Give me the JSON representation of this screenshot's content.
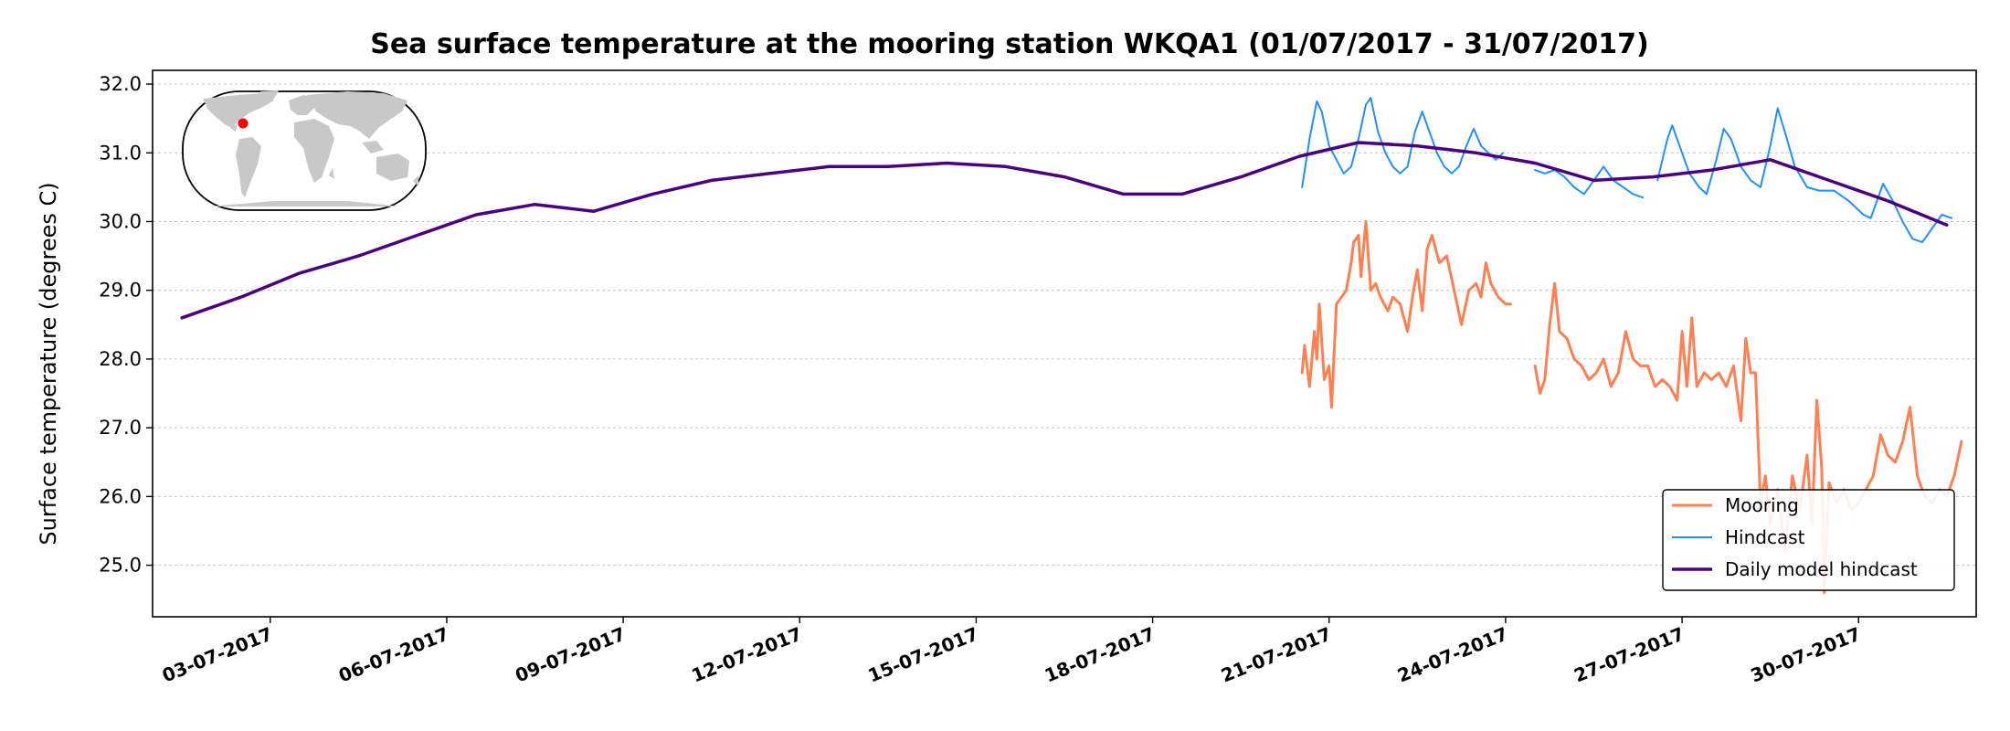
{
  "chart_data": {
    "type": "line",
    "title": "Sea surface temperature at the mooring station WKQA1 (01/07/2017 - 31/07/2017)",
    "xlabel": "",
    "ylabel": "Surface temperature (degrees C)",
    "xlim": [
      "2017-07-01T00:00",
      "2017-08-01T00:00"
    ],
    "ylim": [
      24.25,
      32.2
    ],
    "yticks": [
      "25.0",
      "26.0",
      "27.0",
      "28.0",
      "29.0",
      "30.0",
      "31.0",
      "32.0"
    ],
    "xticks": [
      "03-07-2017",
      "06-07-2017",
      "09-07-2017",
      "12-07-2017",
      "15-07-2017",
      "18-07-2017",
      "21-07-2017",
      "24-07-2017",
      "27-07-2017",
      "30-07-2017"
    ],
    "xtick_dates": [
      "2017-07-03",
      "2017-07-06",
      "2017-07-09",
      "2017-07-12",
      "2017-07-15",
      "2017-07-18",
      "2017-07-21",
      "2017-07-24",
      "2017-07-27",
      "2017-07-30"
    ],
    "grid": "horizontal dotted",
    "legend_position": "lower right",
    "inset": "world map with station location marker",
    "series": [
      {
        "name": "Mooring",
        "color": "#ff7f50",
        "points": [
          [
            "2017-07-20T13:00",
            27.8
          ],
          [
            "2017-07-20T14:00",
            28.2
          ],
          [
            "2017-07-20T16:00",
            27.6
          ],
          [
            "2017-07-20T18:00",
            28.4
          ],
          [
            "2017-07-20T19:00",
            28.0
          ],
          [
            "2017-07-20T20:00",
            28.8
          ],
          [
            "2017-07-20T22:00",
            27.7
          ],
          [
            "2017-07-21T00:00",
            27.9
          ],
          [
            "2017-07-21T01:00",
            27.3
          ],
          [
            "2017-07-21T03:00",
            28.8
          ],
          [
            "2017-07-21T05:00",
            28.9
          ],
          [
            "2017-07-21T07:00",
            29.0
          ],
          [
            "2017-07-21T09:00",
            29.4
          ],
          [
            "2017-07-21T10:00",
            29.7
          ],
          [
            "2017-07-21T12:00",
            29.8
          ],
          [
            "2017-07-21T13:00",
            29.2
          ],
          [
            "2017-07-21T15:00",
            30.0
          ],
          [
            "2017-07-21T17:00",
            29.0
          ],
          [
            "2017-07-21T19:00",
            29.1
          ],
          [
            "2017-07-21T21:00",
            28.9
          ],
          [
            "2017-07-22T00:00",
            28.7
          ],
          [
            "2017-07-22T02:00",
            28.9
          ],
          [
            "2017-07-22T05:00",
            28.8
          ],
          [
            "2017-07-22T08:00",
            28.4
          ],
          [
            "2017-07-22T10:00",
            28.9
          ],
          [
            "2017-07-22T12:00",
            29.3
          ],
          [
            "2017-07-22T14:00",
            28.7
          ],
          [
            "2017-07-22T16:00",
            29.6
          ],
          [
            "2017-07-22T18:00",
            29.8
          ],
          [
            "2017-07-22T21:00",
            29.4
          ],
          [
            "2017-07-23T00:00",
            29.5
          ],
          [
            "2017-07-23T03:00",
            29.0
          ],
          [
            "2017-07-23T06:00",
            28.5
          ],
          [
            "2017-07-23T09:00",
            29.0
          ],
          [
            "2017-07-23T12:00",
            29.1
          ],
          [
            "2017-07-23T14:00",
            28.9
          ],
          [
            "2017-07-23T16:00",
            29.4
          ],
          [
            "2017-07-23T18:00",
            29.1
          ],
          [
            "2017-07-23T21:00",
            28.9
          ],
          [
            "2017-07-24T00:00",
            28.8
          ],
          [
            "2017-07-24T02:00",
            28.8
          ],
          null,
          [
            "2017-07-24T12:00",
            27.9
          ],
          [
            "2017-07-24T14:00",
            27.5
          ],
          [
            "2017-07-24T16:00",
            27.7
          ],
          [
            "2017-07-24T18:00",
            28.5
          ],
          [
            "2017-07-24T20:00",
            29.1
          ],
          [
            "2017-07-24T22:00",
            28.4
          ],
          [
            "2017-07-25T01:00",
            28.3
          ],
          [
            "2017-07-25T04:00",
            28.0
          ],
          [
            "2017-07-25T07:00",
            27.9
          ],
          [
            "2017-07-25T10:00",
            27.7
          ],
          [
            "2017-07-25T13:00",
            27.8
          ],
          [
            "2017-07-25T16:00",
            28.0
          ],
          [
            "2017-07-25T19:00",
            27.6
          ],
          [
            "2017-07-25T22:00",
            27.8
          ],
          [
            "2017-07-26T01:00",
            28.4
          ],
          [
            "2017-07-26T04:00",
            28.0
          ],
          [
            "2017-07-26T07:00",
            27.9
          ],
          [
            "2017-07-26T10:00",
            27.9
          ],
          [
            "2017-07-26T13:00",
            27.6
          ],
          [
            "2017-07-26T16:00",
            27.7
          ],
          [
            "2017-07-26T19:00",
            27.6
          ],
          [
            "2017-07-26T22:00",
            27.4
          ],
          [
            "2017-07-27T00:00",
            28.4
          ],
          [
            "2017-07-27T02:00",
            27.6
          ],
          [
            "2017-07-27T04:00",
            28.6
          ],
          [
            "2017-07-27T06:00",
            27.6
          ],
          [
            "2017-07-27T09:00",
            27.8
          ],
          [
            "2017-07-27T12:00",
            27.7
          ],
          [
            "2017-07-27T15:00",
            27.8
          ],
          [
            "2017-07-27T18:00",
            27.6
          ],
          [
            "2017-07-27T21:00",
            27.9
          ],
          [
            "2017-07-28T00:00",
            27.1
          ],
          [
            "2017-07-28T02:00",
            28.3
          ],
          [
            "2017-07-28T04:00",
            27.8
          ],
          [
            "2017-07-28T06:00",
            27.8
          ],
          [
            "2017-07-28T08:00",
            25.9
          ],
          [
            "2017-07-28T10:00",
            26.3
          ],
          [
            "2017-07-28T12:00",
            25.6
          ],
          [
            "2017-07-28T15:00",
            26.1
          ],
          [
            "2017-07-28T18:00",
            25.2
          ],
          [
            "2017-07-28T21:00",
            26.3
          ],
          [
            "2017-07-29T00:00",
            25.8
          ],
          [
            "2017-07-29T03:00",
            26.6
          ],
          [
            "2017-07-29T05:00",
            25.6
          ],
          [
            "2017-07-29T07:00",
            27.4
          ],
          [
            "2017-07-29T09:00",
            26.4
          ],
          [
            "2017-07-29T10:00",
            24.6
          ],
          [
            "2017-07-29T12:00",
            26.2
          ],
          [
            "2017-07-29T15:00",
            25.9
          ],
          [
            "2017-07-29T18:00",
            26.1
          ],
          [
            "2017-07-29T21:00",
            25.8
          ],
          [
            "2017-07-30T00:00",
            25.9
          ],
          [
            "2017-07-30T03:00",
            26.1
          ],
          [
            "2017-07-30T06:00",
            26.3
          ],
          [
            "2017-07-30T09:00",
            26.9
          ],
          [
            "2017-07-30T12:00",
            26.6
          ],
          [
            "2017-07-30T15:00",
            26.5
          ],
          [
            "2017-07-30T18:00",
            26.8
          ],
          [
            "2017-07-30T21:00",
            27.3
          ],
          [
            "2017-07-31T00:00",
            26.3
          ],
          [
            "2017-07-31T03:00",
            26.0
          ],
          [
            "2017-07-31T06:00",
            25.9
          ],
          [
            "2017-07-31T09:00",
            26.1
          ],
          [
            "2017-07-31T12:00",
            26.0
          ],
          [
            "2017-07-31T15:00",
            26.3
          ],
          [
            "2017-07-31T18:00",
            26.8
          ]
        ]
      },
      {
        "name": "Hindcast",
        "color": "#1e90ff",
        "points": [
          [
            "2017-07-20T13:00",
            30.5
          ],
          [
            "2017-07-20T16:00",
            31.2
          ],
          [
            "2017-07-20T19:00",
            31.75
          ],
          [
            "2017-07-20T21:00",
            31.6
          ],
          [
            "2017-07-21T00:00",
            31.1
          ],
          [
            "2017-07-21T03:00",
            30.9
          ],
          [
            "2017-07-21T06:00",
            30.7
          ],
          [
            "2017-07-21T09:00",
            30.8
          ],
          [
            "2017-07-21T12:00",
            31.2
          ],
          [
            "2017-07-21T15:00",
            31.7
          ],
          [
            "2017-07-21T17:00",
            31.8
          ],
          [
            "2017-07-21T20:00",
            31.3
          ],
          [
            "2017-07-21T23:00",
            31.0
          ],
          [
            "2017-07-22T02:00",
            30.8
          ],
          [
            "2017-07-22T05:00",
            30.7
          ],
          [
            "2017-07-22T08:00",
            30.8
          ],
          [
            "2017-07-22T11:00",
            31.3
          ],
          [
            "2017-07-22T14:00",
            31.6
          ],
          [
            "2017-07-22T17:00",
            31.3
          ],
          [
            "2017-07-22T20:00",
            31.0
          ],
          [
            "2017-07-22T23:00",
            30.8
          ],
          [
            "2017-07-23T02:00",
            30.7
          ],
          [
            "2017-07-23T05:00",
            30.8
          ],
          [
            "2017-07-23T08:00",
            31.1
          ],
          [
            "2017-07-23T11:00",
            31.35
          ],
          [
            "2017-07-23T14:00",
            31.1
          ],
          [
            "2017-07-23T17:00",
            31.0
          ],
          [
            "2017-07-23T20:00",
            30.9
          ],
          [
            "2017-07-23T23:00",
            31.0
          ],
          null,
          [
            "2017-07-24T12:00",
            30.75
          ],
          [
            "2017-07-24T16:00",
            30.7
          ],
          [
            "2017-07-24T20:00",
            30.75
          ],
          [
            "2017-07-25T00:00",
            30.65
          ],
          [
            "2017-07-25T04:00",
            30.5
          ],
          [
            "2017-07-25T08:00",
            30.4
          ],
          [
            "2017-07-25T12:00",
            30.6
          ],
          [
            "2017-07-25T16:00",
            30.8
          ],
          [
            "2017-07-25T20:00",
            30.6
          ],
          [
            "2017-07-26T00:00",
            30.5
          ],
          [
            "2017-07-26T04:00",
            30.4
          ],
          [
            "2017-07-26T08:00",
            30.35
          ],
          null,
          [
            "2017-07-26T14:00",
            30.6
          ],
          [
            "2017-07-26T18:00",
            31.2
          ],
          [
            "2017-07-26T20:00",
            31.4
          ],
          [
            "2017-07-26T23:00",
            31.1
          ],
          [
            "2017-07-27T03:00",
            30.7
          ],
          [
            "2017-07-27T07:00",
            30.5
          ],
          [
            "2017-07-27T10:00",
            30.4
          ],
          [
            "2017-07-27T14:00",
            30.9
          ],
          [
            "2017-07-27T17:00",
            31.35
          ],
          [
            "2017-07-27T20:00",
            31.2
          ],
          [
            "2017-07-28T00:00",
            30.8
          ],
          [
            "2017-07-28T04:00",
            30.6
          ],
          [
            "2017-07-28T08:00",
            30.5
          ],
          [
            "2017-07-28T12:00",
            31.1
          ],
          [
            "2017-07-28T15:00",
            31.65
          ],
          [
            "2017-07-28T18:00",
            31.3
          ],
          [
            "2017-07-28T22:00",
            30.8
          ],
          [
            "2017-07-29T03:00",
            30.5
          ],
          [
            "2017-07-29T08:00",
            30.45
          ],
          [
            "2017-07-29T14:00",
            30.45
          ],
          [
            "2017-07-29T20:00",
            30.3
          ],
          [
            "2017-07-30T02:00",
            30.1
          ],
          [
            "2017-07-30T05:00",
            30.05
          ],
          [
            "2017-07-30T10:00",
            30.55
          ],
          [
            "2017-07-30T14:00",
            30.3
          ],
          [
            "2017-07-30T18:00",
            30.0
          ],
          [
            "2017-07-30T22:00",
            29.75
          ],
          [
            "2017-07-31T02:00",
            29.7
          ],
          [
            "2017-07-31T06:00",
            29.9
          ],
          [
            "2017-07-31T10:00",
            30.1
          ],
          [
            "2017-07-31T14:00",
            30.05
          ]
        ]
      },
      {
        "name": "Daily model hindcast",
        "color": "#4b0082",
        "points": [
          [
            "2017-07-01T12:00",
            28.6
          ],
          [
            "2017-07-02T12:00",
            28.9
          ],
          [
            "2017-07-03T12:00",
            29.25
          ],
          [
            "2017-07-04T12:00",
            29.5
          ],
          [
            "2017-07-05T12:00",
            29.8
          ],
          [
            "2017-07-06T12:00",
            30.1
          ],
          [
            "2017-07-07T12:00",
            30.25
          ],
          [
            "2017-07-08T12:00",
            30.15
          ],
          [
            "2017-07-09T12:00",
            30.4
          ],
          [
            "2017-07-10T12:00",
            30.6
          ],
          [
            "2017-07-11T12:00",
            30.7
          ],
          [
            "2017-07-12T12:00",
            30.8
          ],
          [
            "2017-07-13T12:00",
            30.8
          ],
          [
            "2017-07-14T12:00",
            30.85
          ],
          [
            "2017-07-15T12:00",
            30.8
          ],
          [
            "2017-07-16T12:00",
            30.65
          ],
          [
            "2017-07-17T12:00",
            30.4
          ],
          [
            "2017-07-18T12:00",
            30.4
          ],
          [
            "2017-07-19T12:00",
            30.65
          ],
          [
            "2017-07-20T12:00",
            30.95
          ],
          [
            "2017-07-21T12:00",
            31.15
          ],
          [
            "2017-07-22T12:00",
            31.1
          ],
          [
            "2017-07-23T12:00",
            31.0
          ],
          [
            "2017-07-24T12:00",
            30.85
          ],
          [
            "2017-07-25T12:00",
            30.6
          ],
          [
            "2017-07-26T12:00",
            30.65
          ],
          [
            "2017-07-27T12:00",
            30.75
          ],
          [
            "2017-07-28T12:00",
            30.9
          ],
          [
            "2017-07-29T12:00",
            30.6
          ],
          [
            "2017-07-30T12:00",
            30.3
          ],
          [
            "2017-07-31T12:00",
            29.95
          ]
        ]
      }
    ]
  }
}
